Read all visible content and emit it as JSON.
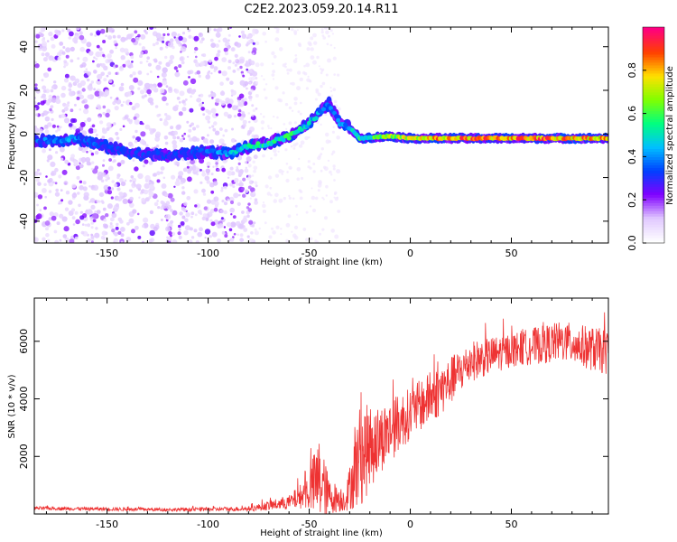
{
  "title": "C2E2.2023.059.20.14.R11",
  "chart_data": [
    {
      "type": "heatmap",
      "xlabel": "Height of straight line (km)",
      "ylabel": "Frequency (Hz)",
      "xlim": [
        -186,
        98
      ],
      "ylim": [
        -50,
        49
      ],
      "xticks": [
        -150,
        -100,
        -50,
        0,
        50
      ],
      "yticks": [
        -40,
        -20,
        0,
        20,
        40
      ],
      "colorbar": {
        "label": "Normalized spectral amplitude",
        "range": [
          0,
          1
        ],
        "ticks": [
          0.0,
          0.2,
          0.4,
          0.6,
          0.8
        ],
        "colormap": [
          "#ffffff",
          "#e0c8ff",
          "#8000ff",
          "#0040ff",
          "#00c0ff",
          "#00ff80",
          "#80ff00",
          "#ffe000",
          "#ff4000",
          "#ff0080"
        ]
      },
      "ridge": [
        {
          "x": -186,
          "y": -3,
          "a": 0.4
        },
        {
          "x": -175,
          "y": -3,
          "a": 0.45
        },
        {
          "x": -165,
          "y": -2,
          "a": 0.45
        },
        {
          "x": -150,
          "y": -6,
          "a": 0.35
        },
        {
          "x": -135,
          "y": -9,
          "a": 0.35
        },
        {
          "x": -120,
          "y": -10,
          "a": 0.35
        },
        {
          "x": -100,
          "y": -8,
          "a": 0.4
        },
        {
          "x": -90,
          "y": -9,
          "a": 0.5
        },
        {
          "x": -80,
          "y": -6,
          "a": 0.6
        },
        {
          "x": -70,
          "y": -4,
          "a": 0.6
        },
        {
          "x": -60,
          "y": -1,
          "a": 0.65
        },
        {
          "x": -50,
          "y": 5,
          "a": 0.55
        },
        {
          "x": -40,
          "y": 14,
          "a": 0.45
        },
        {
          "x": -35,
          "y": 5,
          "a": 0.45
        },
        {
          "x": -30,
          "y": 3,
          "a": 0.5
        },
        {
          "x": -25,
          "y": -2,
          "a": 0.6
        },
        {
          "x": -10,
          "y": -1,
          "a": 0.75
        },
        {
          "x": 0,
          "y": -2,
          "a": 0.85
        },
        {
          "x": 20,
          "y": -2,
          "a": 0.95
        },
        {
          "x": 50,
          "y": -2,
          "a": 1.0
        },
        {
          "x": 98,
          "y": -2,
          "a": 0.95
        }
      ]
    },
    {
      "type": "line",
      "xlabel": "Height of straight line (km)",
      "ylabel": "SNR (10 * v/v)",
      "xlim": [
        -186,
        98
      ],
      "ylim": [
        0,
        7500
      ],
      "xticks": [
        -150,
        -100,
        -50,
        0,
        50
      ],
      "yticks": [
        2000,
        4000,
        6000
      ],
      "color": "#ee3333",
      "trend": [
        {
          "x": -186,
          "mean": 200,
          "noise": 60
        },
        {
          "x": -120,
          "mean": 150,
          "noise": 60
        },
        {
          "x": -80,
          "mean": 180,
          "noise": 80
        },
        {
          "x": -60,
          "mean": 400,
          "noise": 250
        },
        {
          "x": -52,
          "mean": 700,
          "noise": 500
        },
        {
          "x": -45,
          "mean": 1200,
          "noise": 1500
        },
        {
          "x": -40,
          "mean": 600,
          "noise": 600
        },
        {
          "x": -32,
          "mean": 500,
          "noise": 400
        },
        {
          "x": -25,
          "mean": 2000,
          "noise": 1800
        },
        {
          "x": -15,
          "mean": 2600,
          "noise": 1200
        },
        {
          "x": 0,
          "mean": 3500,
          "noise": 900
        },
        {
          "x": 15,
          "mean": 4300,
          "noise": 900
        },
        {
          "x": 30,
          "mean": 5300,
          "noise": 700
        },
        {
          "x": 50,
          "mean": 5700,
          "noise": 600
        },
        {
          "x": 75,
          "mean": 6000,
          "noise": 700
        },
        {
          "x": 98,
          "mean": 5600,
          "noise": 800
        }
      ]
    }
  ]
}
